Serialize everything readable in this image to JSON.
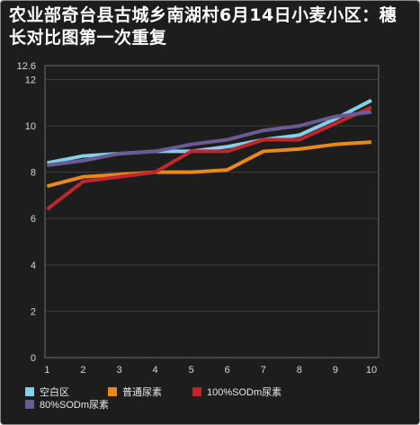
{
  "chart_data": {
    "type": "line",
    "title": "农业部奇台县古城乡南湖村6月14日小麦小区：穗长对比图第一次重复",
    "xlabel": "",
    "ylabel": "",
    "x": [
      1,
      2,
      3,
      4,
      5,
      6,
      7,
      8,
      9,
      10
    ],
    "ylim": [
      0,
      12.6
    ],
    "yticks": [
      "0",
      "2",
      "4",
      "6",
      "8",
      "10",
      "12",
      "12.6"
    ],
    "xticks": [
      "1",
      "2",
      "3",
      "4",
      "5",
      "6",
      "7",
      "8",
      "9",
      "10"
    ],
    "grid": true,
    "legend_position": "bottom",
    "series": [
      {
        "name": "空白区",
        "color": "#87ceeb",
        "values": [
          8.4,
          8.7,
          8.8,
          8.9,
          8.9,
          9.1,
          9.4,
          9.6,
          10.3,
          11.1
        ]
      },
      {
        "name": "普通尿素",
        "color": "#e8891a",
        "values": [
          7.4,
          7.8,
          7.9,
          8.0,
          8.0,
          8.1,
          8.9,
          9.0,
          9.2,
          9.3
        ]
      },
      {
        "name": "100%SODm尿素",
        "color": "#c0272d",
        "values": [
          6.4,
          7.6,
          7.8,
          8.0,
          8.9,
          8.9,
          9.4,
          9.4,
          10.1,
          10.8
        ]
      },
      {
        "name": "80%SODm尿素",
        "color": "#6b5b95",
        "values": [
          8.3,
          8.5,
          8.8,
          8.9,
          9.2,
          9.4,
          9.8,
          10.0,
          10.4,
          10.6
        ]
      }
    ]
  }
}
